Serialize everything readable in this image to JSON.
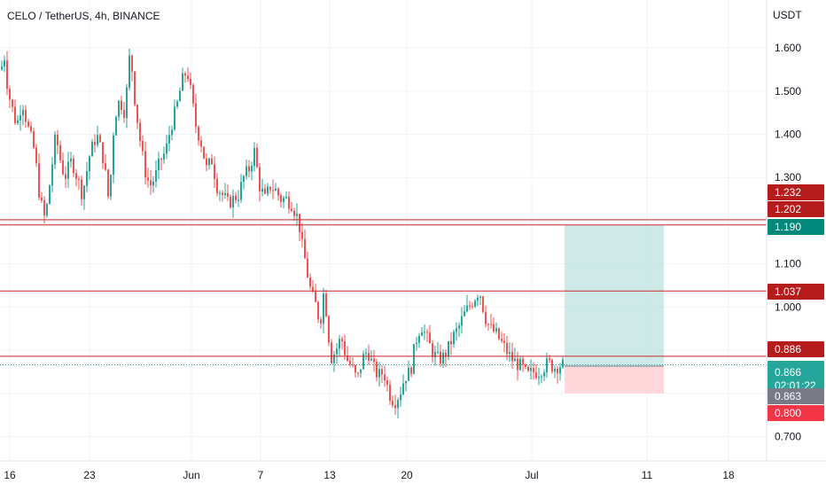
{
  "header": {
    "title": "CELO / TetherUS, 4h, BINANCE"
  },
  "chart_data": {
    "type": "candlestick",
    "title": "CELO / TetherUS, 4h, BINANCE",
    "y_axis_unit": "USDT",
    "y_ticks": [
      1.6,
      1.5,
      1.4,
      1.3,
      1.1,
      1.0,
      0.7
    ],
    "y_tick_labels": [
      "1.600",
      "1.500",
      "1.400",
      "1.300",
      "1.100",
      "1.000",
      "0.700"
    ],
    "x_ticks": [
      "16",
      "23",
      "Jun",
      "7",
      "13",
      "20",
      "Jul",
      "11",
      "18"
    ],
    "ylim": [
      0.655,
      1.695
    ],
    "grid": true,
    "colors": {
      "up": "#26a69a",
      "down": "#ef5350",
      "level_line": "#c62828",
      "target_zone": "#b2dfdb",
      "stop_zone": "#ffcdd2",
      "last_price_line": "#26a69a"
    },
    "horizontal_levels": [
      1.202,
      1.19,
      1.037,
      0.886
    ],
    "price_labels": [
      {
        "value": 1.232,
        "text": "1.232",
        "color": "#b71c1c"
      },
      {
        "value": 1.202,
        "text": "1.202",
        "color": "#b71c1c"
      },
      {
        "value": 1.19,
        "text": "1.190",
        "color": "#00897b"
      },
      {
        "value": 1.037,
        "text": "1.037",
        "color": "#b71c1c"
      },
      {
        "value": 0.886,
        "text": "0.886",
        "color": "#b71c1c"
      },
      {
        "value": 0.866,
        "text": "0.866",
        "sub": "02:01:22",
        "color": "#26a69a"
      },
      {
        "value": 0.863,
        "text": "0.863",
        "color": "#787b86"
      },
      {
        "value": 0.8,
        "text": "0.800",
        "color": "#f23645"
      }
    ],
    "position": {
      "entry": 0.863,
      "target": 1.19,
      "stop": 0.8
    },
    "last_price": 0.866,
    "countdown": "02:01:22",
    "price_path": [
      [
        0,
        1.55
      ],
      [
        4,
        1.58
      ],
      [
        8,
        1.5
      ],
      [
        14,
        1.45
      ],
      [
        18,
        1.42
      ],
      [
        24,
        1.48
      ],
      [
        30,
        1.42
      ],
      [
        38,
        1.36
      ],
      [
        44,
        1.25
      ],
      [
        50,
        1.2
      ],
      [
        56,
        1.3
      ],
      [
        62,
        1.4
      ],
      [
        66,
        1.35
      ],
      [
        72,
        1.3
      ],
      [
        80,
        1.34
      ],
      [
        86,
        1.3
      ],
      [
        92,
        1.26
      ],
      [
        100,
        1.35
      ],
      [
        108,
        1.4
      ],
      [
        116,
        1.34
      ],
      [
        122,
        1.24
      ],
      [
        128,
        1.44
      ],
      [
        134,
        1.48
      ],
      [
        140,
        1.45
      ],
      [
        146,
        1.6
      ],
      [
        150,
        1.5
      ],
      [
        156,
        1.4
      ],
      [
        162,
        1.32
      ],
      [
        168,
        1.28
      ],
      [
        174,
        1.3
      ],
      [
        180,
        1.34
      ],
      [
        186,
        1.36
      ],
      [
        192,
        1.42
      ],
      [
        198,
        1.46
      ],
      [
        204,
        1.52
      ],
      [
        210,
        1.55
      ],
      [
        214,
        1.5
      ],
      [
        220,
        1.42
      ],
      [
        226,
        1.38
      ],
      [
        232,
        1.32
      ],
      [
        238,
        1.34
      ],
      [
        244,
        1.28
      ],
      [
        250,
        1.26
      ],
      [
        256,
        1.24
      ],
      [
        262,
        1.25
      ],
      [
        268,
        1.26
      ],
      [
        274,
        1.3
      ],
      [
        280,
        1.32
      ],
      [
        286,
        1.36
      ],
      [
        292,
        1.28
      ],
      [
        298,
        1.25
      ],
      [
        304,
        1.28
      ],
      [
        310,
        1.27
      ],
      [
        316,
        1.25
      ],
      [
        322,
        1.25
      ],
      [
        328,
        1.24
      ],
      [
        332,
        1.22
      ],
      [
        336,
        1.2
      ],
      [
        340,
        1.14
      ],
      [
        344,
        1.1
      ],
      [
        348,
        1.05
      ],
      [
        352,
        1.02
      ],
      [
        356,
        1.0
      ],
      [
        360,
        0.96
      ],
      [
        364,
        1.03
      ],
      [
        368,
        0.98
      ],
      [
        372,
        0.88
      ],
      [
        378,
        0.9
      ],
      [
        384,
        0.93
      ],
      [
        390,
        0.88
      ],
      [
        396,
        0.86
      ],
      [
        402,
        0.83
      ],
      [
        408,
        0.88
      ],
      [
        414,
        0.9
      ],
      [
        420,
        0.86
      ],
      [
        426,
        0.84
      ],
      [
        432,
        0.85
      ],
      [
        438,
        0.8
      ],
      [
        444,
        0.78
      ],
      [
        450,
        0.8
      ],
      [
        456,
        0.84
      ],
      [
        462,
        0.85
      ],
      [
        468,
        0.92
      ],
      [
        474,
        0.96
      ],
      [
        480,
        0.93
      ],
      [
        486,
        0.9
      ],
      [
        492,
        0.88
      ],
      [
        498,
        0.88
      ],
      [
        504,
        0.9
      ],
      [
        510,
        0.93
      ],
      [
        516,
        0.95
      ],
      [
        522,
        0.98
      ],
      [
        528,
        1.0
      ],
      [
        534,
        1.02
      ],
      [
        540,
        1.04
      ],
      [
        546,
        0.98
      ],
      [
        552,
        0.95
      ],
      [
        558,
        0.94
      ],
      [
        564,
        0.92
      ],
      [
        570,
        0.9
      ],
      [
        576,
        0.88
      ],
      [
        582,
        0.87
      ],
      [
        588,
        0.86
      ],
      [
        594,
        0.84
      ],
      [
        600,
        0.85
      ],
      [
        606,
        0.85
      ],
      [
        612,
        0.86
      ],
      [
        618,
        0.87
      ],
      [
        624,
        0.86
      ],
      [
        630,
        0.865
      ],
      [
        636,
        0.866
      ]
    ]
  }
}
